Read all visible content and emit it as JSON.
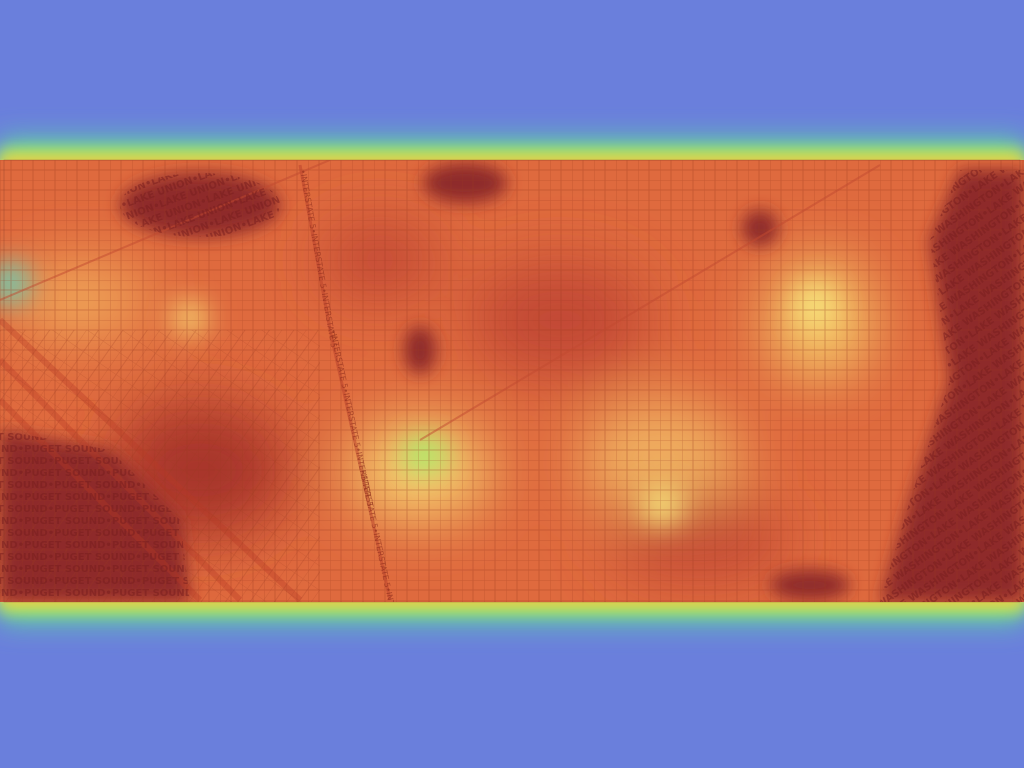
{
  "map": {
    "water_labels": [
      "LAKE UNION",
      "PUGET SOUND",
      "LAKE WASHINGTON"
    ],
    "road_labels": [
      "INTERSTATE 5"
    ],
    "separator": "•"
  }
}
